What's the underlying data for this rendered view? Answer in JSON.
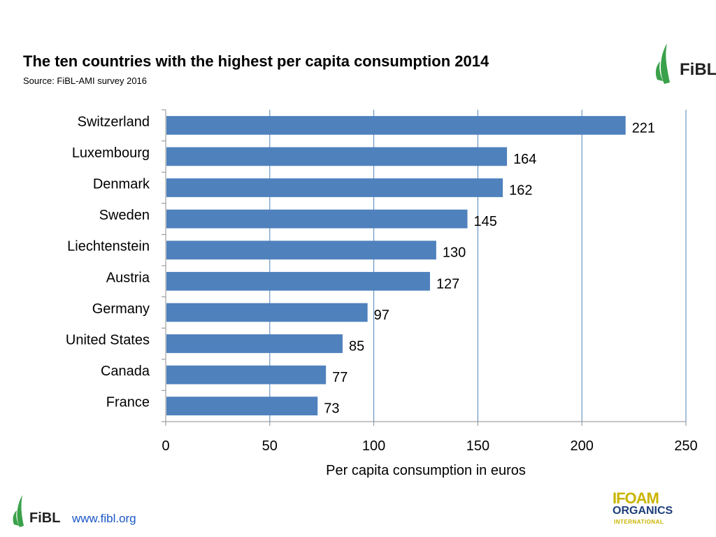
{
  "header": {
    "title": "The ten countries with the highest per capita consumption 2014",
    "source": "Source: FiBL-AMI survey 2016"
  },
  "logos": {
    "top_right": "FiBL",
    "footer": "FiBL",
    "footer_url": "www.fibl.org",
    "ifoam_line1": "IFOAM",
    "ifoam_line2": "ORGANICS",
    "ifoam_line3": "INTERNATIONAL"
  },
  "colors": {
    "bar": "#4f81bd",
    "gridline": "#4f81bd",
    "logo_green": "#3aa14a",
    "link": "#1a56c5"
  },
  "chart_data": {
    "type": "bar",
    "orientation": "horizontal",
    "categories": [
      "Switzerland",
      "Luxembourg",
      "Denmark",
      "Sweden",
      "Liechtenstein",
      "Austria",
      "Germany",
      "United States",
      "Canada",
      "France"
    ],
    "values": [
      221,
      164,
      162,
      145,
      130,
      127,
      97,
      85,
      77,
      73
    ],
    "xlabel": "Per capita consumption in euros",
    "ylabel": "",
    "xlim": [
      0,
      250
    ],
    "xticks": [
      0,
      50,
      100,
      150,
      200,
      250
    ],
    "grid": "vertical",
    "legend": "none"
  }
}
